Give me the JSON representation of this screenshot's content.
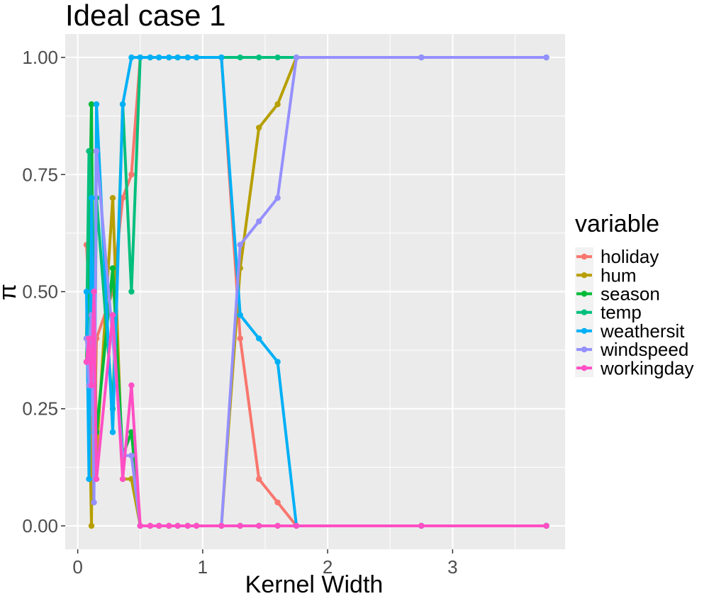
{
  "chart_data": {
    "type": "line",
    "title": "Ideal case 1",
    "xlabel": "Kernel Width",
    "ylabel": "π",
    "xlim": [
      -0.1,
      3.9
    ],
    "ylim": [
      -0.05,
      1.05
    ],
    "x_ticks": [
      0,
      1,
      2,
      3
    ],
    "x_tick_labels": [
      "0",
      "1",
      "2",
      "3"
    ],
    "y_ticks": [
      0,
      0.25,
      0.5,
      0.75,
      1
    ],
    "y_tick_labels": [
      "0.00",
      "0.25",
      "0.50",
      "0.75",
      "1.00"
    ],
    "grid": true,
    "legend_title": "variable",
    "legend_position": "right",
    "x": [
      0.07,
      0.09,
      0.11,
      0.13,
      0.15,
      0.28,
      0.36,
      0.43,
      0.5,
      0.58,
      0.65,
      0.73,
      0.8,
      0.88,
      0.95,
      1.15,
      1.3,
      1.45,
      1.6,
      1.75,
      2.75,
      3.75
    ],
    "series": [
      {
        "name": "holiday",
        "color": "#F8766D",
        "values": [
          0.6,
          0.5,
          0.8,
          0.15,
          0.4,
          0.5,
          0.7,
          0.75,
          1.0,
          1.0,
          1.0,
          1.0,
          1.0,
          1.0,
          1.0,
          1.0,
          0.4,
          0.1,
          0.05,
          0.0,
          0.0,
          0.0
        ]
      },
      {
        "name": "hum",
        "color": "#B79F00",
        "values": [
          0.4,
          0.3,
          0.0,
          0.6,
          0.15,
          0.7,
          0.1,
          0.1,
          0.0,
          0.0,
          0.0,
          0.0,
          0.0,
          0.0,
          0.0,
          0.0,
          0.55,
          0.85,
          0.9,
          1.0,
          1.0,
          1.0
        ]
      },
      {
        "name": "season",
        "color": "#00BA38",
        "values": [
          0.35,
          0.6,
          0.9,
          0.3,
          0.2,
          0.55,
          0.15,
          0.2,
          0.0,
          0.0,
          0.0,
          0.0,
          0.0,
          0.0,
          0.0,
          0.0,
          0.0,
          0.0,
          0.0,
          0.0,
          0.0,
          0.0
        ]
      },
      {
        "name": "temp",
        "color": "#00BF7D",
        "values": [
          0.4,
          0.8,
          0.7,
          0.2,
          0.7,
          0.25,
          0.9,
          0.5,
          1.0,
          1.0,
          1.0,
          1.0,
          1.0,
          1.0,
          1.0,
          1.0,
          1.0,
          1.0,
          1.0,
          1.0,
          1.0,
          1.0
        ]
      },
      {
        "name": "weathersit",
        "color": "#00B0F6",
        "values": [
          0.5,
          0.1,
          0.7,
          0.2,
          0.9,
          0.2,
          0.9,
          1.0,
          1.0,
          1.0,
          1.0,
          1.0,
          1.0,
          1.0,
          1.0,
          1.0,
          0.45,
          0.4,
          0.35,
          0.0,
          0.0,
          0.0
        ]
      },
      {
        "name": "windspeed",
        "color": "#9590FF",
        "values": [
          0.4,
          0.3,
          0.45,
          0.05,
          0.8,
          0.4,
          0.15,
          0.15,
          0.0,
          0.0,
          0.0,
          0.0,
          0.0,
          0.0,
          0.0,
          0.0,
          0.6,
          0.65,
          0.7,
          1.0,
          1.0,
          1.0
        ]
      },
      {
        "name": "workingday",
        "color": "#FF4FC4",
        "values": [
          0.35,
          0.4,
          0.3,
          0.5,
          0.1,
          0.45,
          0.1,
          0.3,
          0.0,
          0.0,
          0.0,
          0.0,
          0.0,
          0.0,
          0.0,
          0.0,
          0.0,
          0.0,
          0.0,
          0.0,
          0.0,
          0.0
        ]
      }
    ]
  }
}
